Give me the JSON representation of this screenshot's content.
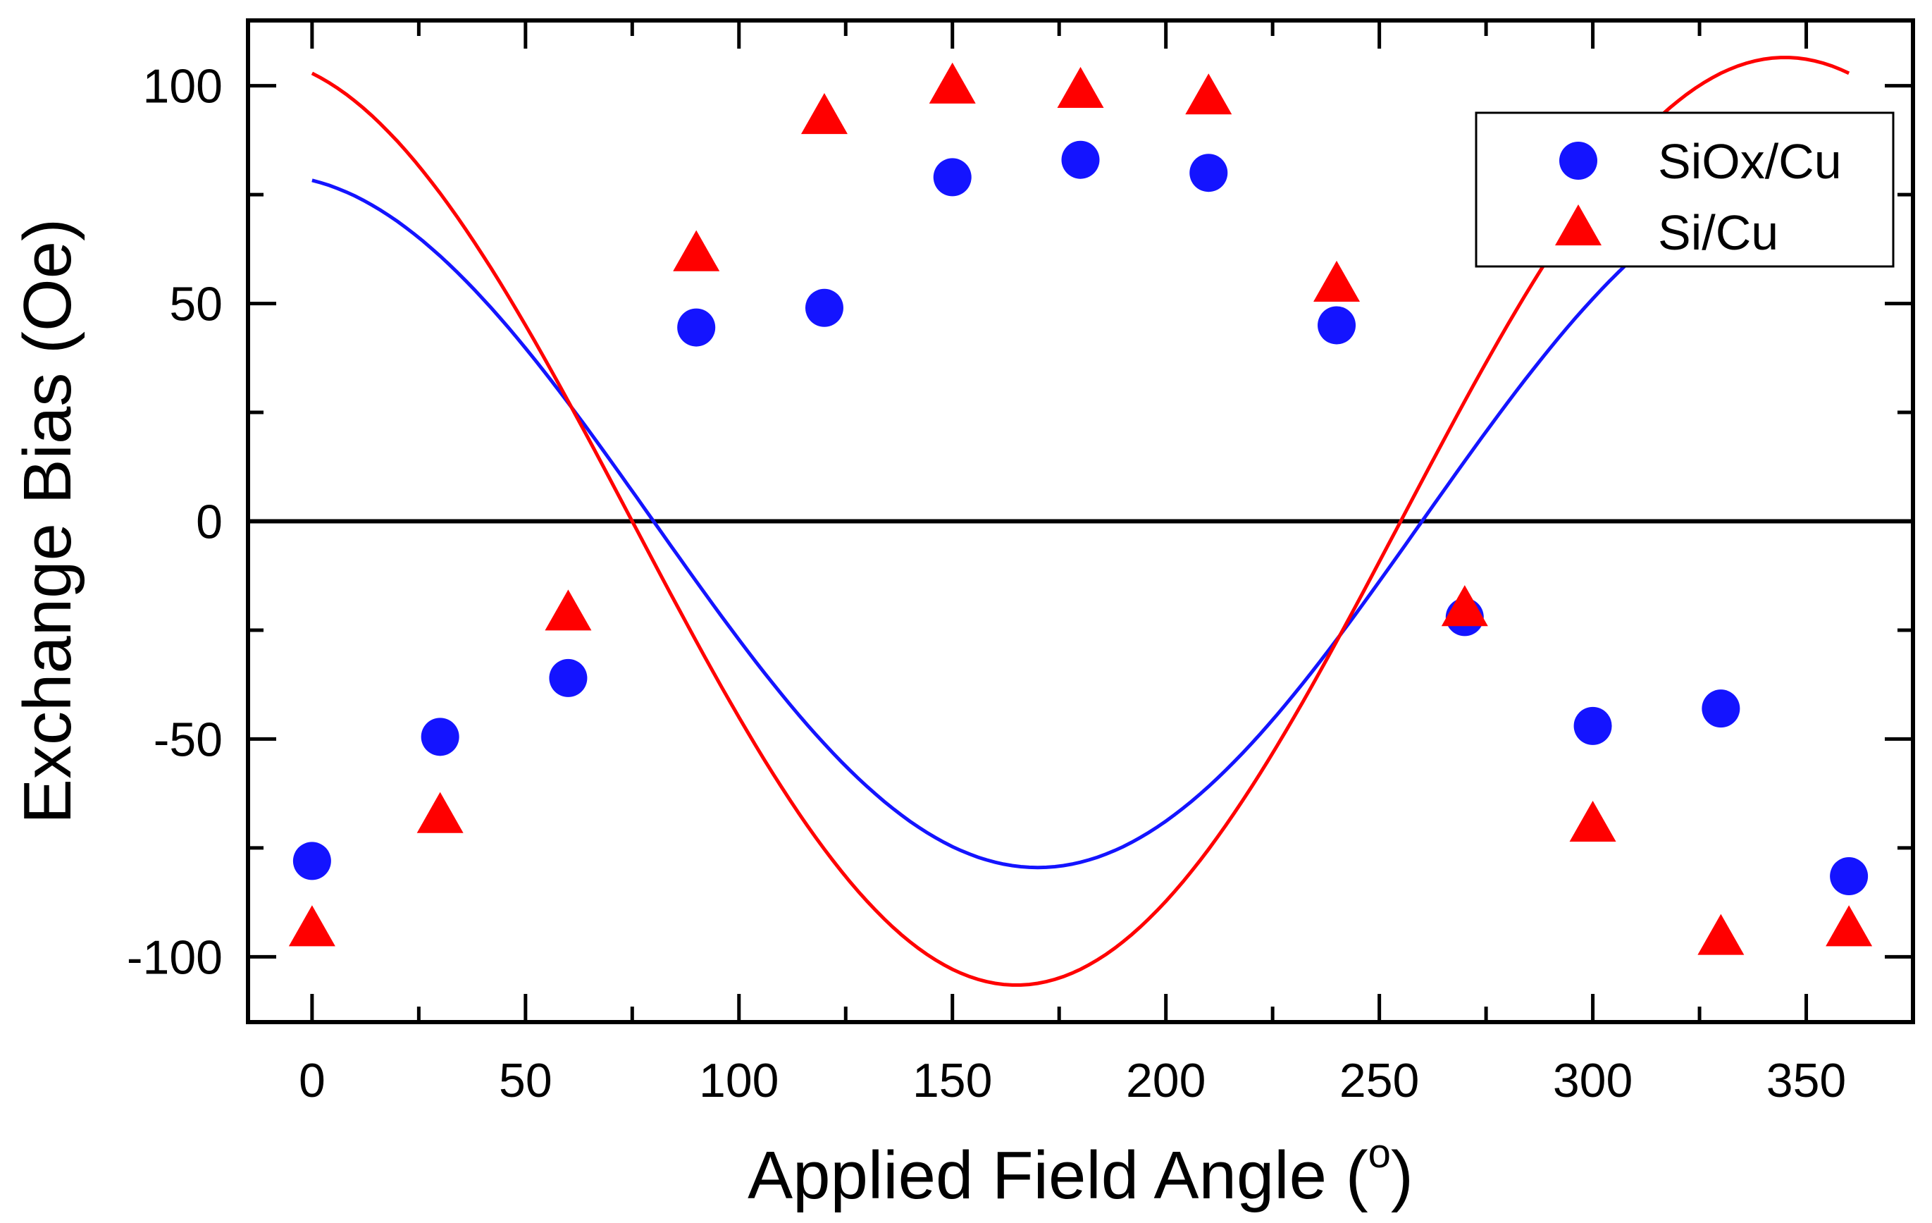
{
  "chart_data": {
    "type": "scatter",
    "xlabel": "Applied Field Angle (",
    "xlabel_superscript": "o",
    "xlabel_close": ")",
    "ylabel": "Exchange Bias (Oe)",
    "xlim": [
      -15,
      375
    ],
    "ylim": [
      -115,
      115
    ],
    "xticks": [
      0,
      50,
      100,
      150,
      200,
      250,
      300,
      350
    ],
    "yticks": [
      -100,
      -50,
      0,
      50,
      100
    ],
    "xtick_labels": [
      "0",
      "50",
      "100",
      "150",
      "200",
      "250",
      "300",
      "350"
    ],
    "ytick_labels": [
      "-100",
      "-50",
      "0",
      "50",
      "100"
    ],
    "zero_line": true,
    "legend_position": "top-right",
    "series": [
      {
        "name": "SiOx/Cu",
        "marker": "circle",
        "color": "#1414ff",
        "x": [
          0,
          30,
          60,
          90,
          120,
          150,
          180,
          210,
          240,
          270,
          300,
          330,
          360
        ],
        "y": [
          -78,
          -49.5,
          -36,
          44.5,
          49,
          79,
          83,
          80,
          45,
          -22,
          -47,
          -43,
          -81.5
        ],
        "fit": {
          "kind": "cosine",
          "amplitude": 79.5,
          "phase_deg": 170,
          "offset": 0
        }
      },
      {
        "name": "Si/Cu",
        "marker": "triangle",
        "color": "#ff0000",
        "x": [
          0,
          30,
          60,
          90,
          120,
          150,
          180,
          210,
          240,
          270,
          300,
          330,
          360
        ],
        "y": [
          -94,
          -68,
          -21.5,
          61,
          92.5,
          99.5,
          98.5,
          97,
          54,
          -20.5,
          -70,
          -96,
          -94
        ],
        "fit": {
          "kind": "cosine",
          "amplitude": 106.5,
          "phase_deg": 165,
          "offset": 0
        }
      }
    ]
  }
}
